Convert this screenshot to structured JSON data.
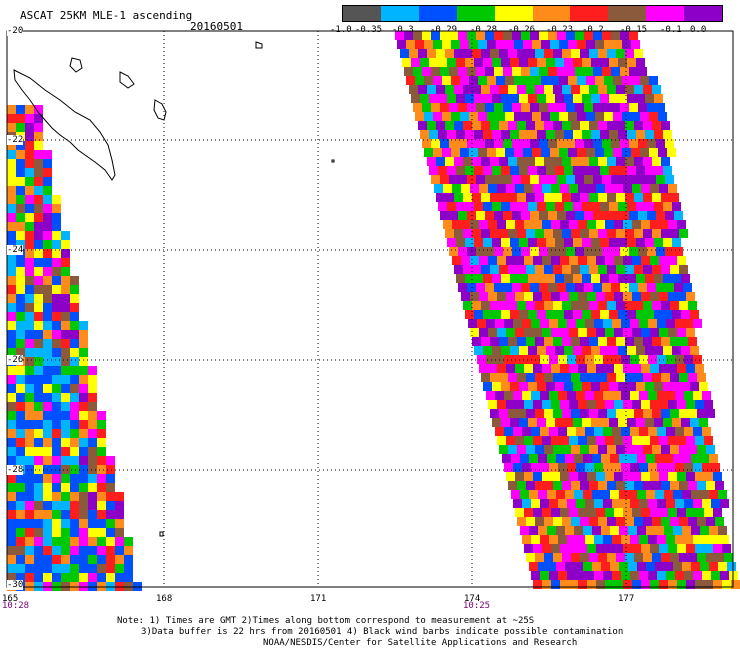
{
  "header": {
    "title": "ASCAT 25KM MLE-1 ascending",
    "date": "20160501"
  },
  "colorbar": {
    "colors": [
      "#555555",
      "#00b4ff",
      "#0050ff",
      "#00c800",
      "#ffff00",
      "#ff8c1a",
      "#ff1e1e",
      "#8b5a3c",
      "#ff00ff",
      "#8c00c8"
    ],
    "tick_labels": [
      "-1.0",
      "-0.35",
      "-0.3",
      "-0.29",
      "-0.28",
      "-0.26",
      "-0.23",
      "-0.2",
      "-0.15",
      "-0.1",
      "0.0"
    ]
  },
  "axes": {
    "lat_labels": [
      "-20",
      "-22",
      "-24",
      "-26",
      "-28",
      "-30"
    ],
    "lon_labels": [
      "165",
      "168",
      "171",
      "174",
      "177"
    ],
    "time_labels": [
      "10:28",
      "10:25"
    ]
  },
  "notes": {
    "line1": "Note: 1) Times are GMT 2)Times along bottom correspond to measurement at ~25S",
    "line2": "3)Data buffer is 22 hrs from 20160501 4) Black wind barbs indicate possible contamination",
    "line3": "NOAA/NESDIS/Center for Satellite Applications and Research"
  }
}
